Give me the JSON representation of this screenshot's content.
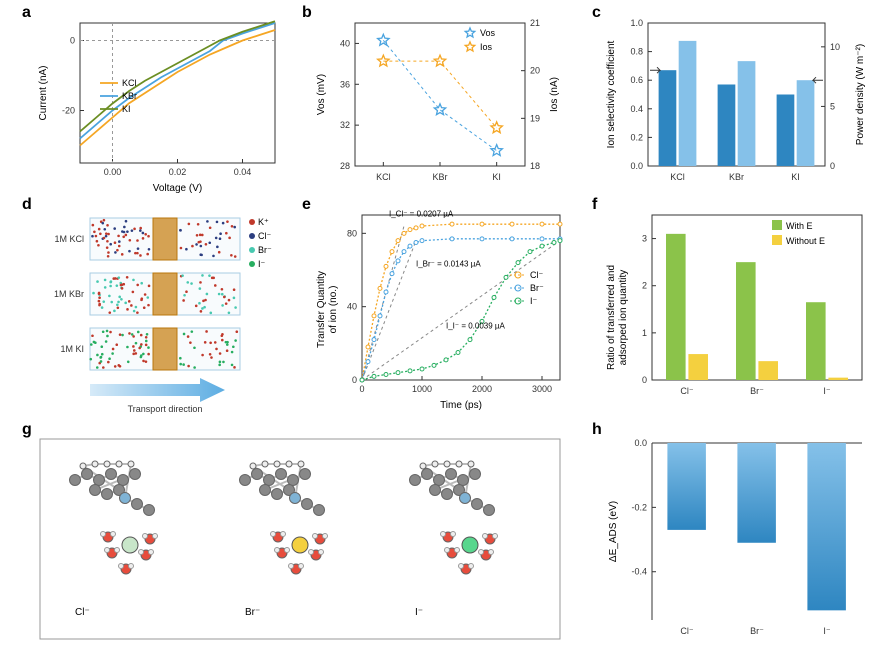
{
  "panels": {
    "a": {
      "label": "a",
      "xlabel": "Voltage (V)",
      "ylabel": "Current (nA)",
      "xlim": [
        -0.01,
        0.05
      ],
      "xticks": [
        0.0,
        0.02,
        0.04
      ],
      "ylim": [
        -35,
        5
      ],
      "yticks": [
        -20,
        0
      ],
      "colors": {
        "KCl": "#f5a623",
        "KBr": "#4aa3df",
        "KI": "#6b8e23"
      },
      "series": {
        "KCl": [
          [
            -0.01,
            -30
          ],
          [
            -0.005,
            -26
          ],
          [
            0,
            -22
          ],
          [
            0.005,
            -18
          ],
          [
            0.01,
            -15
          ],
          [
            0.015,
            -12
          ],
          [
            0.02,
            -9
          ],
          [
            0.025,
            -6.5
          ],
          [
            0.03,
            -4
          ],
          [
            0.035,
            -2
          ],
          [
            0.04,
            0
          ],
          [
            0.045,
            1.5
          ],
          [
            0.05,
            3
          ]
        ],
        "KBr": [
          [
            -0.01,
            -28
          ],
          [
            -0.005,
            -24
          ],
          [
            0,
            -20
          ],
          [
            0.005,
            -16.5
          ],
          [
            0.01,
            -13.5
          ],
          [
            0.015,
            -10.5
          ],
          [
            0.02,
            -8
          ],
          [
            0.025,
            -5.5
          ],
          [
            0.03,
            -3
          ],
          [
            0.034,
            0
          ],
          [
            0.04,
            2
          ],
          [
            0.045,
            3.5
          ],
          [
            0.05,
            5
          ]
        ],
        "KI": [
          [
            -0.01,
            -26
          ],
          [
            -0.005,
            -22
          ],
          [
            0,
            -18
          ],
          [
            0.005,
            -14.5
          ],
          [
            0.01,
            -11.5
          ],
          [
            0.015,
            -9
          ],
          [
            0.02,
            -6.5
          ],
          [
            0.025,
            -4
          ],
          [
            0.03,
            -1.5
          ],
          [
            0.033,
            0
          ],
          [
            0.04,
            2.5
          ],
          [
            0.045,
            4
          ],
          [
            0.05,
            5.5
          ]
        ]
      },
      "legend": [
        "KCl",
        "KBr",
        "KI"
      ]
    },
    "b": {
      "label": "b",
      "xlabel_cats": [
        "KCl",
        "KBr",
        "KI"
      ],
      "ylabel_left": "Vos (mV)",
      "ylabel_right": "Ios (nA)",
      "ylim_left": [
        28,
        42
      ],
      "yticks_left": [
        28,
        32,
        36,
        40
      ],
      "ylim_right": [
        18,
        21
      ],
      "yticks_right": [
        18,
        19,
        20,
        21
      ],
      "colors": {
        "Vos": "#4aa3df",
        "Ios": "#f5a623"
      },
      "vos": [
        40.3,
        33.5,
        29.5
      ],
      "ios": [
        20.2,
        20.2,
        18.8
      ],
      "legend": [
        "Vos",
        "Ios"
      ]
    },
    "c": {
      "label": "c",
      "xlabel_cats": [
        "KCl",
        "KBr",
        "KI"
      ],
      "ylabel_left": "Ion selectivity coefficient",
      "ylabel_right": "Power density (W m⁻²)",
      "ylim_left": [
        0,
        1
      ],
      "yticks_left": [
        0.0,
        0.2,
        0.4,
        0.6,
        0.8,
        1.0
      ],
      "ylim_right": [
        0,
        12
      ],
      "yticks_right": [
        0,
        5,
        10
      ],
      "colors": {
        "sel": "#2e86c1",
        "pow": "#85c1e9"
      },
      "sel": [
        0.67,
        0.57,
        0.5
      ],
      "pow": [
        10.5,
        8.8,
        7.2
      ]
    },
    "d": {
      "label": "d",
      "labels": [
        "1M KCl",
        "1M KBr",
        "1M KI"
      ],
      "arrow_label": "Transport direction",
      "ion_legend": [
        {
          "name": "K⁺",
          "color": "#c0392b"
        },
        {
          "name": "Cl⁻",
          "color": "#2c3e80"
        },
        {
          "name": "Br⁻",
          "color": "#48c9b0"
        },
        {
          "name": "I⁻",
          "color": "#27ae60"
        }
      ]
    },
    "e": {
      "label": "e",
      "xlabel": "Time (ps)",
      "ylabel": "Transfer Quantity\nof ion (no.)",
      "xlim": [
        0,
        3300
      ],
      "xticks": [
        0,
        1000,
        2000,
        3000
      ],
      "ylim": [
        0,
        90
      ],
      "yticks": [
        0,
        40,
        80
      ],
      "colors": {
        "Cl": "#f5a623",
        "Br": "#4aa3df",
        "I": "#27ae60"
      },
      "annotations": [
        {
          "text": "I_Cl⁻ = 0.0207 µA"
        },
        {
          "text": "I_Br⁻ = 0.0143 µA"
        },
        {
          "text": "I_I⁻ = 0.0039 µA"
        }
      ],
      "legend": [
        "Cl⁻",
        "Br⁻",
        "I⁻"
      ],
      "series": {
        "Cl": [
          [
            0,
            0
          ],
          [
            100,
            18
          ],
          [
            200,
            35
          ],
          [
            300,
            50
          ],
          [
            400,
            62
          ],
          [
            500,
            70
          ],
          [
            600,
            76
          ],
          [
            700,
            80
          ],
          [
            800,
            82
          ],
          [
            900,
            83
          ],
          [
            1000,
            84
          ],
          [
            1500,
            85
          ],
          [
            2000,
            85
          ],
          [
            2500,
            85
          ],
          [
            3000,
            85
          ],
          [
            3300,
            85
          ]
        ],
        "Br": [
          [
            0,
            0
          ],
          [
            100,
            10
          ],
          [
            200,
            22
          ],
          [
            300,
            35
          ],
          [
            400,
            48
          ],
          [
            500,
            58
          ],
          [
            600,
            65
          ],
          [
            700,
            70
          ],
          [
            800,
            73
          ],
          [
            900,
            75
          ],
          [
            1000,
            76
          ],
          [
            1500,
            77
          ],
          [
            2000,
            77
          ],
          [
            2500,
            77
          ],
          [
            3000,
            77
          ],
          [
            3300,
            77
          ]
        ],
        "I": [
          [
            0,
            0
          ],
          [
            200,
            2
          ],
          [
            400,
            3
          ],
          [
            600,
            4
          ],
          [
            800,
            5
          ],
          [
            1000,
            6
          ],
          [
            1200,
            8
          ],
          [
            1400,
            11
          ],
          [
            1600,
            15
          ],
          [
            1800,
            22
          ],
          [
            2000,
            32
          ],
          [
            2200,
            45
          ],
          [
            2400,
            56
          ],
          [
            2600,
            64
          ],
          [
            2800,
            70
          ],
          [
            3000,
            73
          ],
          [
            3200,
            75
          ],
          [
            3300,
            76
          ]
        ]
      }
    },
    "f": {
      "label": "f",
      "xlabel_cats": [
        "Cl⁻",
        "Br⁻",
        "I⁻"
      ],
      "ylabel": "Ratio of transferred and\nadsorped ion quantity",
      "ylim": [
        0,
        3.5
      ],
      "yticks": [
        0,
        1,
        2,
        3
      ],
      "colors": {
        "withE": "#8bc34a",
        "withoutE": "#f4d03f"
      },
      "withE": [
        3.1,
        2.5,
        1.65
      ],
      "withoutE": [
        0.55,
        0.4,
        0.05
      ],
      "legend": [
        "With E",
        "Without E"
      ]
    },
    "g": {
      "label": "g",
      "labels": [
        "Cl⁻",
        "Br⁻",
        "I⁻"
      ],
      "atom_colors": {
        "C": "#888",
        "H": "#eee",
        "N": "#7fb3d5",
        "O": "#e74c3c",
        "Cl": "#c8e6c9",
        "Br": "#f4d03f",
        "I": "#58d68d"
      }
    },
    "h": {
      "label": "h",
      "xlabel_cats": [
        "Cl⁻",
        "Br⁻",
        "I⁻"
      ],
      "ylabel": "ΔE_ADS (eV)",
      "ylim": [
        -0.55,
        0
      ],
      "yticks": [
        -0.4,
        -0.2,
        0.0
      ],
      "color_top": "#85c1e9",
      "color_bot": "#2e86c1",
      "values": [
        -0.27,
        -0.31,
        -0.52
      ]
    }
  }
}
